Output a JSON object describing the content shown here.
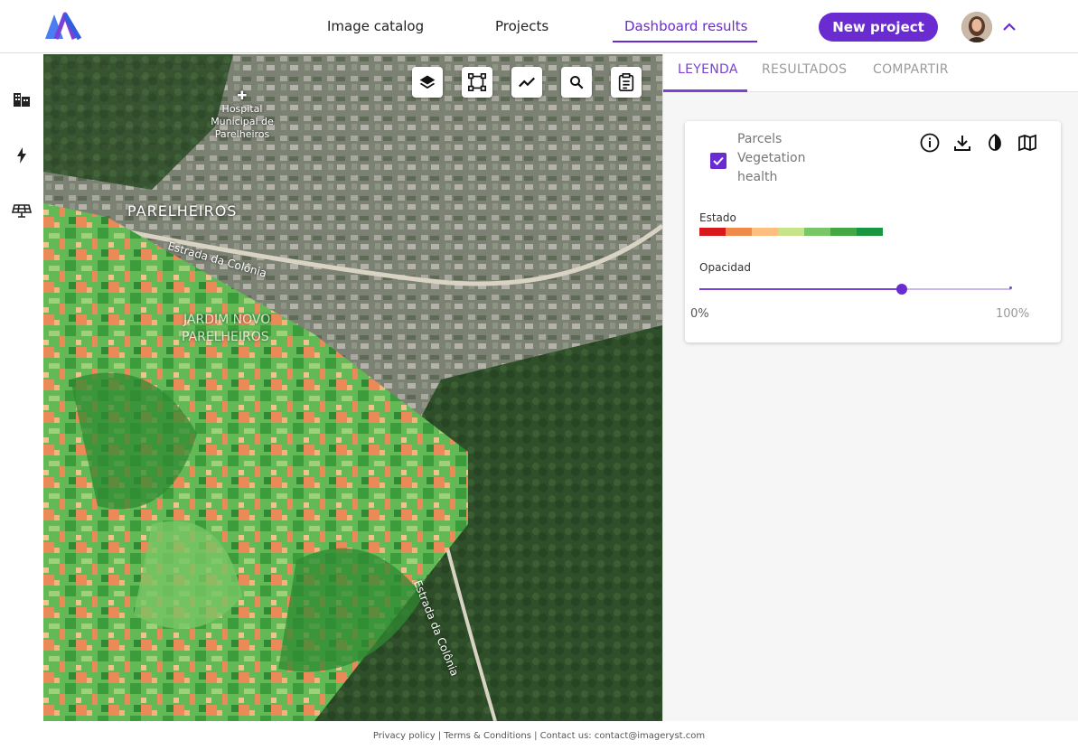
{
  "header": {
    "nav": [
      "Image catalog",
      "Projects",
      "Dashboard results"
    ],
    "new_project_label": "New project"
  },
  "colors": {
    "accent": "#6a2bd1",
    "legend_scale": [
      "#d7191c",
      "#f08a4b",
      "#fdbf80",
      "#c6e58b",
      "#78c665",
      "#43a843",
      "#1a9641"
    ]
  },
  "rail_icons": [
    "buildings-icon",
    "lightning-icon",
    "solar-panel-icon"
  ],
  "map": {
    "labels": {
      "hospital": "Hospital Municipal de Parelheiros",
      "parelheiros": "PARELHEIROS",
      "estrada": "Estrada da Colônia",
      "jardim1": "JARDIM NOVO",
      "jardim2": "PARELHEIROS",
      "estrada2": "Estrada da Colônia"
    },
    "tools": [
      "layers-icon",
      "polygon-icon",
      "timeseries-icon",
      "search-icon",
      "report-icon"
    ]
  },
  "panel": {
    "tabs": [
      "LEYENDA",
      "RESULTADOS",
      "COMPARTIR"
    ],
    "layer": {
      "name": "Parcels Vegetation health",
      "checked": true
    },
    "estado_label": "Estado",
    "opacity_label": "Opacidad",
    "opacity_min": "0%",
    "opacity_max": "100%",
    "opacity_value": 0.65
  },
  "footer": {
    "text": "Privacy policy | Terms & Conditions  |  Contact us: contact@imageryst.com"
  }
}
